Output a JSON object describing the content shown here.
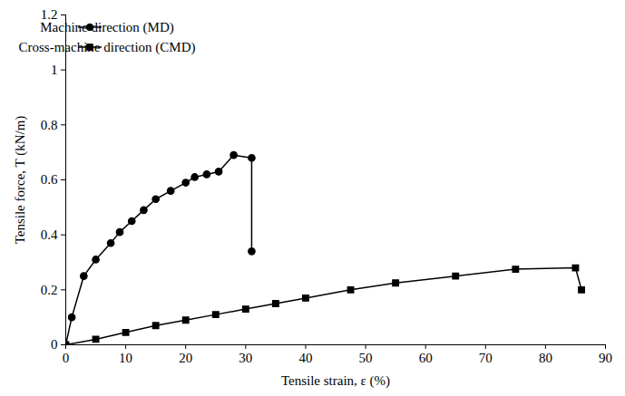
{
  "chart_data": {
    "type": "line",
    "x_label": "Tensile strain, ε (%)",
    "y_label": "Tensile force, T (kN/m)",
    "xlim": [
      0,
      90
    ],
    "xticks": [
      0,
      10,
      20,
      30,
      40,
      50,
      60,
      70,
      80,
      90
    ],
    "ylim": [
      0,
      1.2
    ],
    "yticks": [
      0,
      0.2,
      0.4,
      0.6,
      0.8,
      1,
      1.2
    ],
    "grid": false,
    "legend": "top-left",
    "series": [
      {
        "name": "Machine direction (MD)",
        "color": "#000000",
        "marker": "circle",
        "line_style": "solid",
        "x": [
          0,
          1,
          3,
          5,
          7.5,
          9,
          11,
          13,
          15,
          17.5,
          20,
          21.5,
          23.5,
          25.5,
          28,
          31,
          31
        ],
        "values": [
          0,
          0.1,
          0.25,
          0.31,
          0.37,
          0.41,
          0.45,
          0.49,
          0.53,
          0.56,
          0.59,
          0.61,
          0.62,
          0.63,
          0.69,
          0.68,
          0.34
        ]
      },
      {
        "name": "Cross-machine direction (CMD)",
        "color": "#000000",
        "marker": "square",
        "line_style": "solid",
        "x": [
          0,
          5,
          10,
          15,
          20,
          25,
          30,
          35,
          40,
          47.5,
          55,
          65,
          75,
          85,
          86
        ],
        "values": [
          0,
          0.02,
          0.045,
          0.07,
          0.09,
          0.11,
          0.13,
          0.15,
          0.17,
          0.2,
          0.225,
          0.25,
          0.275,
          0.28,
          0.2
        ]
      }
    ]
  }
}
